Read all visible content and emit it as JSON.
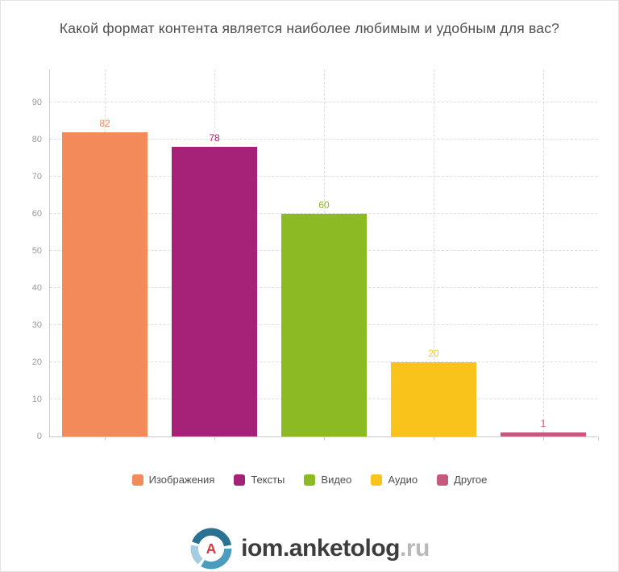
{
  "title": "Какой формат контента является наиболее любимым и удобным для вас?",
  "chart_data": {
    "type": "bar",
    "title": "Какой формат контента является наиболее любимым и удобным для вас?",
    "categories": [
      "Изображения",
      "Тексты",
      "Видео",
      "Аудио",
      "Другое"
    ],
    "values": [
      82,
      78,
      60,
      20,
      1
    ],
    "colors": [
      "#f28a5a",
      "#a62178",
      "#8bba22",
      "#f9c31c",
      "#c7597f"
    ],
    "xlabel": "",
    "ylabel": "",
    "ylim": [
      0,
      99
    ],
    "yticks": [
      0,
      10,
      20,
      30,
      40,
      50,
      60,
      70,
      80,
      90
    ],
    "grid": "dashed",
    "legend_position": "bottom",
    "bar_value_labels": [
      82,
      78,
      60,
      20,
      1
    ]
  },
  "legend": {
    "items": [
      {
        "label": "Изображения",
        "color": "#f28a5a"
      },
      {
        "label": "Тексты",
        "color": "#a62178"
      },
      {
        "label": "Видео",
        "color": "#8bba22"
      },
      {
        "label": "Аудио",
        "color": "#f9c31c"
      },
      {
        "label": "Другое",
        "color": "#c7597f"
      }
    ]
  },
  "footer": {
    "brand_main": "iom.anketolog",
    "brand_suffix": ".ru",
    "logo_letter": "A"
  },
  "colors": {
    "title_text": "#4f4f4f",
    "axis_line": "#cccccc",
    "grid_line": "#dedede",
    "tick_label": "#999999",
    "legend_text": "#4d4d4d",
    "brand_text": "#3d3d3d",
    "brand_suffix": "#b9b9b9",
    "logo_dark_blue": "#2a7294",
    "logo_mid_blue": "#4c9cbd",
    "logo_light_blue": "#a3cde0",
    "logo_letter_red": "#d23b41"
  }
}
